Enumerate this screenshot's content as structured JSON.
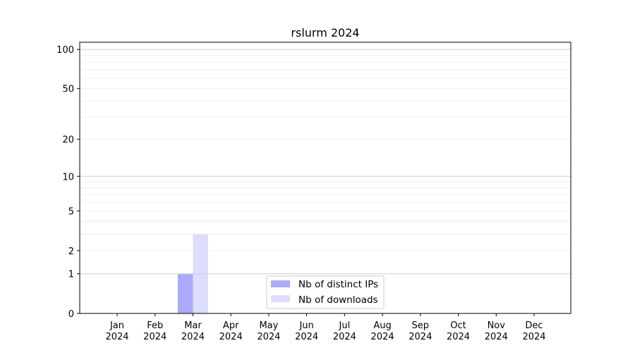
{
  "chart_data": {
    "type": "bar",
    "title": "rslurm 2024",
    "xlabel": "",
    "ylabel": "",
    "yscale": "log(1+y)",
    "ylim": [
      0,
      113
    ],
    "grid": true,
    "legend_position": "lower-center",
    "categories": [
      "Jan\n2024",
      "Feb\n2024",
      "Mar\n2024",
      "Apr\n2024",
      "May\n2024",
      "Jun\n2024",
      "Jul\n2024",
      "Aug\n2024",
      "Sep\n2024",
      "Oct\n2024",
      "Nov\n2024",
      "Dec\n2024"
    ],
    "y_ticks": [
      0,
      1,
      2,
      5,
      10,
      20,
      50,
      100
    ],
    "series": [
      {
        "name": "Nb of distinct IPs",
        "color": "#aaaaff",
        "values": [
          0,
          0,
          1,
          0,
          0,
          0,
          0,
          0,
          0,
          0,
          0,
          0
        ]
      },
      {
        "name": "Nb of downloads",
        "color": "#ddddff",
        "values": [
          0,
          0,
          3,
          0,
          0,
          0,
          0,
          0,
          0,
          0,
          0,
          0
        ]
      }
    ]
  }
}
